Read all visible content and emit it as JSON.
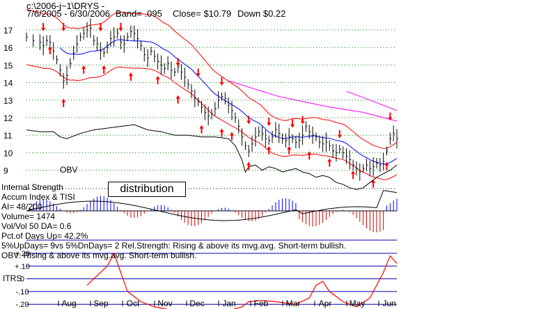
{
  "header": {
    "path": "c:\\2006-j~1\\DRYS   -",
    "dates": "7/6/2005 - 6/30/2006",
    "band": "Band= .095",
    "close": "Close= $10.79",
    "change": "Down $0.22"
  },
  "labels": {
    "obv": "OBV",
    "distribution": "distribution",
    "itrs": "ITRS"
  },
  "info_lines": [
    "Internal Strength",
    "Accum Index & TISI",
    "AI= 48/200",
    "Volume= 1474",
    "Vol/Vol 50 DA= 0.6",
    "Pct.of Days Up= 42.2%",
    "5%UpDays= 9vs 5%DnDays= 2   Rel.Strength: Rising & above its mvg.avg. Short-term bullish.",
    "OBV: Rising & above its mvg.avg. Short-term bullish."
  ],
  "colors": {
    "price_bars": "#000000",
    "band_lines": "#ff0000",
    "moving_average": "#0000ff",
    "long_ma": "#ff00ff",
    "buy_arrow": "#ff0000",
    "sell_arrow": "#ff0000",
    "accum_positive": "#0000ff",
    "accum_negative": "#cc0000",
    "itrs_line": "#ff0000",
    "grid_dots": "#008000"
  },
  "chart_data": {
    "type": "line",
    "x_axis": {
      "months": [
        "Aug",
        "Sep",
        "Oct",
        "Nov",
        "Dec",
        "Jan",
        "Feb",
        "Mar",
        "Apr",
        "May",
        "Jun"
      ]
    },
    "price_axis": {
      "ticks": [
        "17",
        "16",
        "15",
        "14",
        "13",
        "12",
        "11",
        "10",
        "9"
      ],
      "ylim": [
        8.6,
        17.6
      ]
    },
    "itrs_axis": {
      "ticks": [
        "+.20",
        "+.10",
        "0",
        "-.10",
        "-.20"
      ],
      "ylim": [
        -0.2,
        0.2
      ]
    },
    "price_close": [
      [
        0,
        16.6
      ],
      [
        2,
        16.4
      ],
      [
        4,
        16.3
      ],
      [
        5,
        16.1
      ],
      [
        6,
        16.4
      ],
      [
        7,
        16.3
      ],
      [
        8,
        15.8
      ],
      [
        9,
        15.3
      ],
      [
        10,
        14.7
      ],
      [
        11,
        14.1
      ],
      [
        12,
        14.4
      ],
      [
        13,
        15.1
      ],
      [
        14,
        15.7
      ],
      [
        15,
        16.2
      ],
      [
        16,
        16.6
      ],
      [
        17,
        16.8
      ],
      [
        18,
        17.0
      ],
      [
        19,
        17.1
      ],
      [
        20,
        16.4
      ],
      [
        21,
        16.2
      ],
      [
        22,
        15.8
      ],
      [
        23,
        15.7
      ],
      [
        24,
        16.0
      ],
      [
        25,
        16.5
      ],
      [
        26,
        16.6
      ],
      [
        27,
        16.8
      ],
      [
        28,
        16.3
      ],
      [
        29,
        16.2
      ],
      [
        30,
        16.6
      ],
      [
        31,
        16.9
      ],
      [
        32,
        16.8
      ],
      [
        33,
        16.5
      ],
      [
        34,
        16.1
      ],
      [
        35,
        15.6
      ],
      [
        36,
        15.4
      ],
      [
        37,
        15.8
      ],
      [
        38,
        15.5
      ],
      [
        39,
        15.2
      ],
      [
        40,
        15.0
      ],
      [
        41,
        14.8
      ],
      [
        42,
        15.1
      ],
      [
        43,
        14.7
      ],
      [
        44,
        14.6
      ],
      [
        45,
        14.9
      ],
      [
        46,
        14.6
      ],
      [
        47,
        14.3
      ],
      [
        48,
        13.9
      ],
      [
        49,
        13.5
      ],
      [
        50,
        13.1
      ],
      [
        51,
        12.9
      ],
      [
        52,
        12.6
      ],
      [
        53,
        12.3
      ],
      [
        54,
        12.1
      ],
      [
        55,
        12.2
      ],
      [
        56,
        12.5
      ],
      [
        57,
        13.0
      ],
      [
        58,
        13.2
      ],
      [
        59,
        13.1
      ],
      [
        60,
        12.7
      ],
      [
        61,
        12.4
      ],
      [
        62,
        12.0
      ],
      [
        63,
        11.5
      ],
      [
        64,
        10.9
      ],
      [
        65,
        10.4
      ],
      [
        66,
        10.1
      ],
      [
        67,
        10.5
      ],
      [
        68,
        10.9
      ],
      [
        69,
        11.2
      ],
      [
        70,
        11.1
      ],
      [
        71,
        10.8
      ],
      [
        72,
        10.7
      ],
      [
        73,
        10.9
      ],
      [
        74,
        11.3
      ],
      [
        75,
        11.1
      ],
      [
        76,
        10.8
      ],
      [
        77,
        10.7
      ],
      [
        78,
        10.9
      ],
      [
        79,
        10.8
      ],
      [
        80,
        10.6
      ],
      [
        81,
        10.7
      ],
      [
        82,
        11.0
      ],
      [
        83,
        11.5
      ],
      [
        84,
        11.2
      ],
      [
        85,
        11.0
      ],
      [
        86,
        10.9
      ],
      [
        87,
        10.6
      ],
      [
        88,
        10.5
      ],
      [
        89,
        10.6
      ],
      [
        90,
        10.4
      ],
      [
        91,
        10.1
      ],
      [
        92,
        10.0
      ],
      [
        93,
        10.2
      ],
      [
        94,
        10.0
      ],
      [
        95,
        9.8
      ],
      [
        96,
        9.6
      ],
      [
        97,
        9.3
      ],
      [
        98,
        9.1
      ],
      [
        99,
        8.9
      ],
      [
        100,
        9.1
      ],
      [
        101,
        9.3
      ],
      [
        102,
        9.1
      ],
      [
        103,
        9.2
      ],
      [
        104,
        9.4
      ],
      [
        105,
        9.3
      ],
      [
        106,
        9.5
      ],
      [
        107,
        10.1
      ],
      [
        108,
        10.8
      ],
      [
        109,
        11.1
      ],
      [
        110,
        10.8
      ]
    ],
    "obv": [
      [
        0,
        11.3
      ],
      [
        4,
        11.2
      ],
      [
        8,
        11.2
      ],
      [
        10,
        10.9
      ],
      [
        12,
        10.8
      ],
      [
        16,
        11.1
      ],
      [
        20,
        11.3
      ],
      [
        24,
        11.4
      ],
      [
        28,
        11.5
      ],
      [
        32,
        11.6
      ],
      [
        36,
        11.3
      ],
      [
        40,
        11.2
      ],
      [
        44,
        11.0
      ],
      [
        48,
        11.0
      ],
      [
        52,
        10.9
      ],
      [
        56,
        10.9
      ],
      [
        60,
        10.8
      ],
      [
        62,
        10.4
      ],
      [
        64,
        9.6
      ],
      [
        65,
        8.9
      ],
      [
        66,
        9.2
      ],
      [
        68,
        9.3
      ],
      [
        70,
        9.0
      ],
      [
        72,
        9.2
      ],
      [
        74,
        9.1
      ],
      [
        76,
        8.9
      ],
      [
        78,
        9.0
      ],
      [
        80,
        9.1
      ],
      [
        82,
        8.9
      ],
      [
        84,
        8.8
      ],
      [
        86,
        8.6
      ],
      [
        88,
        8.7
      ],
      [
        90,
        8.6
      ],
      [
        92,
        8.3
      ],
      [
        94,
        8.2
      ],
      [
        96,
        8.0
      ],
      [
        98,
        7.9
      ],
      [
        100,
        8.0
      ],
      [
        102,
        8.3
      ],
      [
        104,
        8.6
      ],
      [
        106,
        8.8
      ],
      [
        108,
        9.0
      ],
      [
        110,
        9.3
      ]
    ]
  }
}
